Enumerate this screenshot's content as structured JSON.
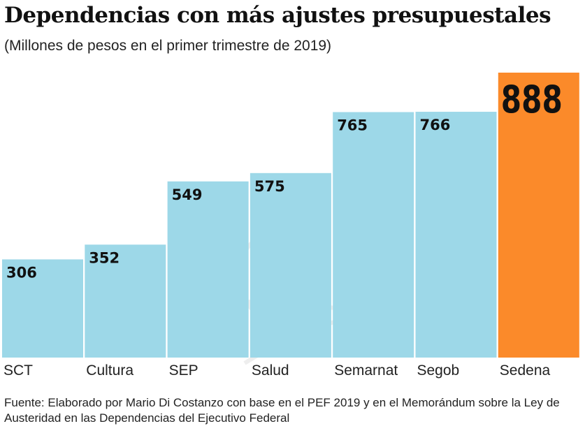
{
  "chart_data": {
    "type": "bar",
    "title": "Dependencias con más ajustes presupuestales",
    "subtitle": "(Millones de pesos en el primer trimestre de 2019)",
    "categories": [
      "SCT",
      "Cultura",
      "SEP",
      "Salud",
      "Semarnat",
      "Segob",
      "Sedena"
    ],
    "values": [
      306,
      352,
      549,
      575,
      765,
      766,
      888
    ],
    "value_labels": [
      "306",
      "352",
      "549",
      "575",
      "765",
      "766",
      "888"
    ],
    "colors": {
      "default": "#9dd8e8",
      "highlight": "#fb8a2a"
    },
    "highlight_index": 6,
    "xlabel": "",
    "ylabel": "",
    "ylim": [
      0,
      888
    ],
    "grid": false,
    "source": "Fuente: Elaborado por Mario Di Costanzo con base en el PEF 2019 y en el Memorándum sobre la Ley de Austeridad en las Dependencias del Ejecutivo Federal"
  }
}
